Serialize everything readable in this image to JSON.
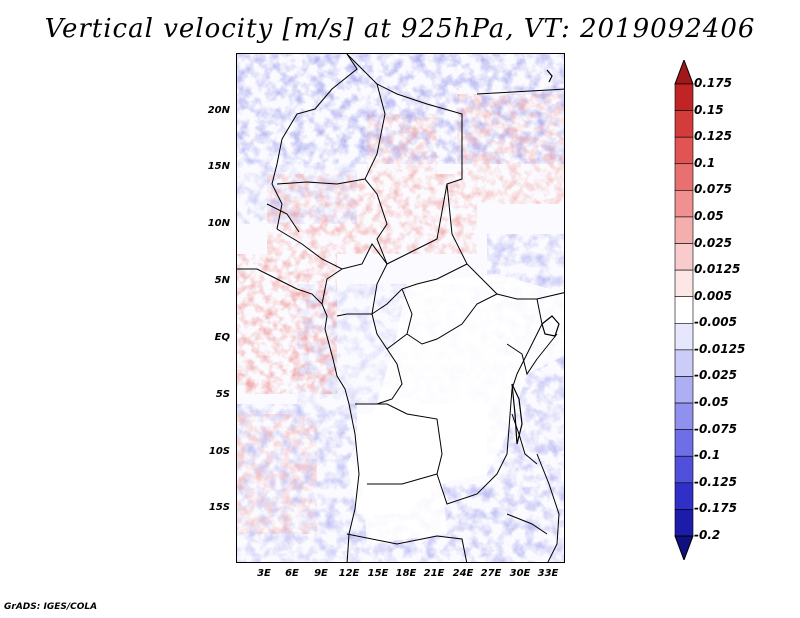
{
  "title": "Vertical velocity [m/s] at 925hPa, VT: 2019092406",
  "latitude_labels": [
    "20N",
    "15N",
    "10N",
    "5N",
    "EQ",
    "5S",
    "10S",
    "15S"
  ],
  "longitude_labels": [
    "3E",
    "6E",
    "9E",
    "12E",
    "15E",
    "18E",
    "21E",
    "24E",
    "27E",
    "30E",
    "33E"
  ],
  "colorbar": {
    "levels": [
      "0.175",
      "0.15",
      "0.125",
      "0.1",
      "0.075",
      "0.05",
      "0.025",
      "0.0125",
      "0.005",
      "-0.005",
      "-0.0125",
      "-0.025",
      "-0.05",
      "-0.075",
      "-0.1",
      "-0.125",
      "-0.175",
      "-0.2"
    ],
    "colors": [
      "#a01818",
      "#c02424",
      "#d43c3c",
      "#e05454",
      "#e87070",
      "#f09090",
      "#f4aeae",
      "#f8cccc",
      "#fce6e6",
      "#ffffff",
      "#e6e6fc",
      "#ccccf8",
      "#aeaef4",
      "#9090ee",
      "#6e6ee6",
      "#5050da",
      "#3030c8",
      "#1c1ca8",
      "#10107e"
    ]
  },
  "credit": "GrADS: IGES/COLA"
}
